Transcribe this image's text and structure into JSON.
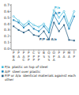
{
  "chart_data": {
    "type": "line",
    "categories": [
      "P\nB\nA",
      "P\nA",
      "P\nA\nC",
      "P\nP\nP",
      "C\nP\nP",
      "V\nP\nP",
      "B\nS",
      "Q\nS\nS",
      "O\nP\nA",
      "P\nA",
      "P\nA",
      "M\nA",
      "T\nP"
    ],
    "series": [
      {
        "name": "P/a  plastic on top of steel",
        "color": "#44bbdd",
        "marker": "circle",
        "values": [
          0.52,
          0.45,
          0.38,
          0.44,
          0.38,
          0.35,
          0.4,
          0.3,
          0.62,
          0.5,
          0.6,
          0.38,
          0.6
        ]
      },
      {
        "name": "A/P  steel over plastic",
        "color": "#2288bb",
        "marker": "square",
        "values": [
          0.46,
          0.42,
          0.34,
          0.4,
          0.32,
          0.28,
          0.36,
          0.26,
          0.54,
          0.4,
          0.52,
          0.32,
          0.52
        ]
      },
      {
        "name": "P/P or A/a  identical materials against each other",
        "color": "#336688",
        "marker": "square",
        "values": [
          0.36,
          0.3,
          0.26,
          0.3,
          0.22,
          0.2,
          0.28,
          0.15,
          0.42,
          0.28,
          0.38,
          0.14,
          0.13
        ]
      }
    ],
    "annotations": [
      {
        "text": "P/a",
        "series": 0,
        "point": 8
      },
      {
        "text": "A/P",
        "series": 1,
        "point": 8
      },
      {
        "text": "P/P or A/a",
        "series": 2,
        "point": 5
      }
    ],
    "ylim": [
      -0.02,
      0.72
    ],
    "yticks": [
      {
        "value": 0,
        "label": "0.0"
      },
      0.1,
      0.2,
      0.3,
      0.4,
      0.5,
      0.6,
      0.7
    ],
    "legend": "bottom",
    "grid": false
  }
}
